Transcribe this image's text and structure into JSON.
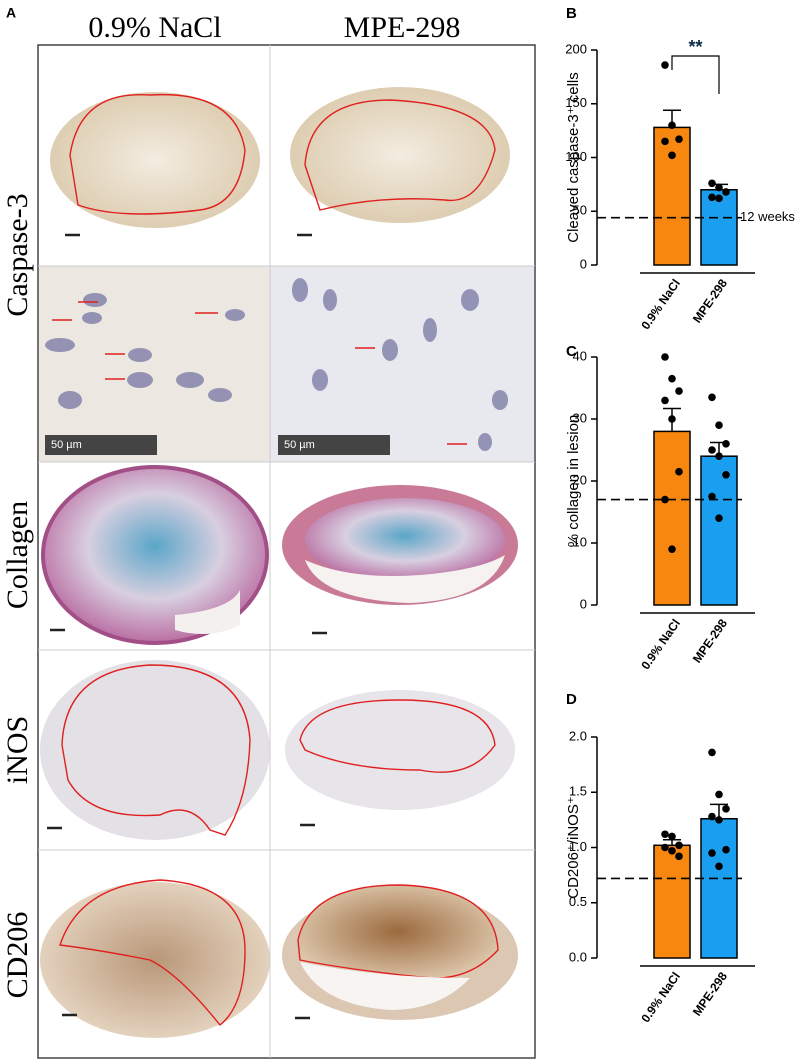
{
  "figure": {
    "label": "A",
    "columns": [
      "0.9% NaCl",
      "MPE-298"
    ],
    "rows": [
      "Caspase-3",
      "Collagen",
      "iNOS",
      "CD206"
    ],
    "scale_bars": [
      "50 µm",
      "50 µm"
    ]
  },
  "chart_data": [
    {
      "type": "bar",
      "label": "B",
      "ylabel": "Cleaved caspase-3⁺ cells",
      "categories": [
        "0.9% NaCl",
        "MPE-298"
      ],
      "colors": [
        "#f7870f",
        "#1a9ff0"
      ],
      "values": [
        128,
        70
      ],
      "errors": [
        16,
        5
      ],
      "points": [
        [
          186,
          130,
          117,
          115,
          102
        ],
        [
          76,
          72,
          68,
          63,
          62
        ]
      ],
      "ylim": [
        0,
        200
      ],
      "yticks": [
        0,
        50,
        100,
        150,
        200
      ],
      "reference": 44,
      "reference_label": "12 weeks",
      "significance": "**"
    },
    {
      "type": "bar",
      "label": "C",
      "ylabel": "% collagen in lesion",
      "categories": [
        "0.9% NaCl",
        "MPE-298"
      ],
      "colors": [
        "#f7870f",
        "#1a9ff0"
      ],
      "values": [
        28,
        24
      ],
      "errors": [
        3.7,
        2.2
      ],
      "points": [
        [
          40,
          36.5,
          34.5,
          33,
          30,
          21.5,
          17,
          9
        ],
        [
          33.5,
          29,
          26,
          25,
          24,
          21,
          17.5,
          14
        ]
      ],
      "ylim": [
        0,
        40
      ],
      "yticks": [
        0,
        10,
        20,
        30,
        40
      ],
      "reference": 17
    },
    {
      "type": "bar",
      "label": "D",
      "ylabel": "CD206⁺/iNOS⁺",
      "categories": [
        "0.9% NaCl",
        "MPE-298"
      ],
      "colors": [
        "#f7870f",
        "#1a9ff0"
      ],
      "values": [
        1.02,
        1.26
      ],
      "errors": [
        0.05,
        0.13
      ],
      "points": [
        [
          1.12,
          1.1,
          1.02,
          1.0,
          0.97,
          0.92
        ],
        [
          1.86,
          1.48,
          1.35,
          1.28,
          1.25,
          0.98,
          0.95,
          0.83
        ]
      ],
      "ylim": [
        0,
        2
      ],
      "yticks": [
        {
          "value": 0,
          "label": "0.0"
        },
        {
          "value": 0.5,
          "label": "0.5"
        },
        {
          "value": 1,
          "label": "1.0"
        },
        {
          "value": 1.5,
          "label": "1.5"
        },
        {
          "value": 2,
          "label": "2.0"
        }
      ],
      "reference": 0.72
    }
  ]
}
